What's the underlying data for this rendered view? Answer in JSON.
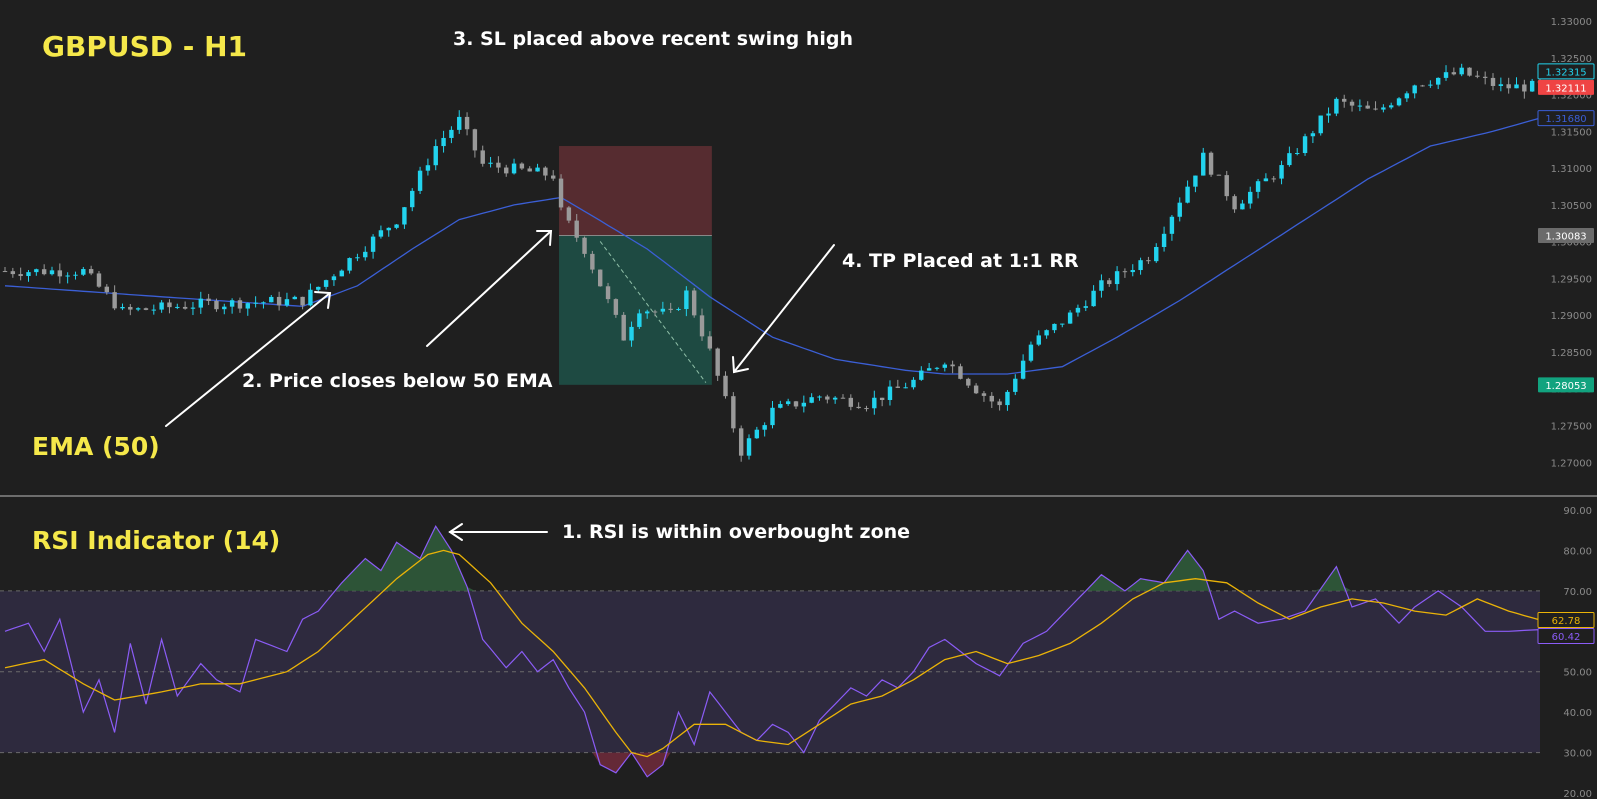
{
  "colors": {
    "background": "#1f1f1f",
    "up": "#22d3ee",
    "down": "#9a9a9a",
    "ema": "#3b5fd6",
    "rsi": "#8b5cf6",
    "rsi_ma": "#eab308",
    "title": "#f5e84a",
    "stop_zone": "#5a2d31",
    "target_zone": "#1f4d45",
    "rsi_band": "#2e2a3e",
    "divider": "#bbbbbb"
  },
  "price_panel": {
    "title": "GBPUSD - H1",
    "ema_label": "EMA (50)",
    "y_ticks": [
      "1.33000",
      "1.32500",
      "1.32000",
      "1.31500",
      "1.31000",
      "1.30500",
      "1.30000",
      "1.29500",
      "1.29000",
      "1.28500",
      "1.28000",
      "1.27500",
      "1.27000"
    ],
    "tags": [
      {
        "text": "1.32315",
        "style": "outline",
        "color": "#22d3ee",
        "value": 1.32315
      },
      {
        "text": "1.32111",
        "style": "fill",
        "color": "#ef4444",
        "value": 1.32111
      },
      {
        "text": "1.31680",
        "style": "outline",
        "color": "#3b5fd6",
        "value": 1.3168
      },
      {
        "text": "1.30083",
        "style": "fill",
        "color": "#6b6b6b",
        "value": 1.30083
      },
      {
        "text": "1.28053",
        "style": "fill",
        "color": "#12a37f",
        "value": 1.28053
      }
    ],
    "annotations": {
      "step2": "2. Price closes below 50 EMA",
      "step3": "3. SL placed above recent swing high",
      "step4": "4. TP Placed at 1:1 RR"
    }
  },
  "rsi_panel": {
    "title": "RSI Indicator (14)",
    "y_ticks": [
      "90.00",
      "80.00",
      "70.00",
      "60.00",
      "50.00",
      "40.00",
      "30.00",
      "20.00"
    ],
    "tags": [
      {
        "text": "62.78",
        "style": "outline",
        "color": "#eab308",
        "value": 62.78
      },
      {
        "text": "60.42",
        "style": "outline",
        "color": "#8b5cf6",
        "value": 60.42
      }
    ],
    "annotations": {
      "step1": "1. RSI is within overbought zone"
    }
  },
  "chart_data": [
    {
      "type": "candlestick",
      "title": "GBPUSD - H1",
      "ylim": [
        1.2665,
        1.3315
      ],
      "x_range": [
        0,
        196
      ],
      "ema_label": "EMA (50)",
      "price_anchors": [
        [
          0,
          1.296
        ],
        [
          10,
          1.296
        ],
        [
          15,
          1.2905
        ],
        [
          25,
          1.2915
        ],
        [
          38,
          1.292
        ],
        [
          45,
          1.2985
        ],
        [
          50,
          1.303
        ],
        [
          55,
          1.313
        ],
        [
          58,
          1.3165
        ],
        [
          61,
          1.3105
        ],
        [
          70,
          1.309
        ],
        [
          71,
          1.304
        ],
        [
          74,
          1.299
        ],
        [
          79,
          1.287
        ],
        [
          81,
          1.291
        ],
        [
          85,
          1.29
        ],
        [
          87,
          1.293
        ],
        [
          90,
          1.285
        ],
        [
          94,
          1.2715
        ],
        [
          98,
          1.277
        ],
        [
          104,
          1.279
        ],
        [
          110,
          1.278
        ],
        [
          116,
          1.281
        ],
        [
          120,
          1.284
        ],
        [
          124,
          1.28
        ],
        [
          127,
          1.2775
        ],
        [
          131,
          1.286
        ],
        [
          136,
          1.29
        ],
        [
          140,
          1.294
        ],
        [
          146,
          1.298
        ],
        [
          153,
          1.3115
        ],
        [
          157,
          1.305
        ],
        [
          163,
          1.31
        ],
        [
          170,
          1.319
        ],
        [
          175,
          1.3175
        ],
        [
          180,
          1.3215
        ],
        [
          186,
          1.323
        ],
        [
          191,
          1.321
        ],
        [
          196,
          1.32111
        ]
      ],
      "ema_anchors": [
        [
          0,
          1.294
        ],
        [
          20,
          1.2925
        ],
        [
          38,
          1.2912
        ],
        [
          45,
          1.294
        ],
        [
          52,
          1.299
        ],
        [
          58,
          1.303
        ],
        [
          65,
          1.305
        ],
        [
          71,
          1.306
        ],
        [
          75,
          1.3035
        ],
        [
          82,
          1.299
        ],
        [
          90,
          1.2925
        ],
        [
          98,
          1.287
        ],
        [
          106,
          1.284
        ],
        [
          115,
          1.2825
        ],
        [
          120,
          1.282
        ],
        [
          128,
          1.282
        ],
        [
          135,
          1.283
        ],
        [
          142,
          1.287
        ],
        [
          150,
          1.292
        ],
        [
          158,
          1.2975
        ],
        [
          166,
          1.303
        ],
        [
          174,
          1.3085
        ],
        [
          182,
          1.313
        ],
        [
          190,
          1.315
        ],
        [
          196,
          1.3168
        ]
      ],
      "trade_setup": {
        "entry_candle": 71,
        "exit_candle": 90,
        "stop_loss": 1.313,
        "entry": 1.30083,
        "take_profit": 1.28053
      }
    },
    {
      "type": "line",
      "title": "RSI Indicator (14)",
      "ylim": [
        20,
        90
      ],
      "x_range": [
        0,
        196
      ],
      "levels": [
        70,
        50,
        30
      ],
      "series": [
        {
          "key": "rsi",
          "color": "#8b5cf6",
          "anchors": [
            [
              0,
              60
            ],
            [
              3,
              62
            ],
            [
              5,
              55
            ],
            [
              7,
              63
            ],
            [
              10,
              40
            ],
            [
              12,
              48
            ],
            [
              14,
              35
            ],
            [
              16,
              57
            ],
            [
              18,
              42
            ],
            [
              20,
              58
            ],
            [
              22,
              44
            ],
            [
              25,
              52
            ],
            [
              27,
              48
            ],
            [
              30,
              45
            ],
            [
              32,
              58
            ],
            [
              36,
              55
            ],
            [
              38,
              63
            ],
            [
              40,
              65
            ],
            [
              43,
              72
            ],
            [
              46,
              78
            ],
            [
              48,
              75
            ],
            [
              50,
              82
            ],
            [
              53,
              78
            ],
            [
              55,
              86
            ],
            [
              57,
              80
            ],
            [
              59,
              71
            ],
            [
              61,
              58
            ],
            [
              64,
              51
            ],
            [
              66,
              55
            ],
            [
              68,
              50
            ],
            [
              70,
              53
            ],
            [
              72,
              46
            ],
            [
              74,
              40
            ],
            [
              76,
              27
            ],
            [
              78,
              25
            ],
            [
              80,
              30
            ],
            [
              82,
              24
            ],
            [
              84,
              27
            ],
            [
              86,
              40
            ],
            [
              88,
              32
            ],
            [
              90,
              45
            ],
            [
              92,
              40
            ],
            [
              94,
              35
            ],
            [
              96,
              33
            ],
            [
              98,
              37
            ],
            [
              100,
              35
            ],
            [
              102,
              30
            ],
            [
              104,
              38
            ],
            [
              106,
              42
            ],
            [
              108,
              46
            ],
            [
              110,
              44
            ],
            [
              112,
              48
            ],
            [
              114,
              46
            ],
            [
              116,
              50
            ],
            [
              118,
              56
            ],
            [
              120,
              58
            ],
            [
              122,
              55
            ],
            [
              124,
              52
            ],
            [
              127,
              49
            ],
            [
              130,
              57
            ],
            [
              133,
              60
            ],
            [
              136,
              66
            ],
            [
              138,
              70
            ],
            [
              140,
              74
            ],
            [
              143,
              70
            ],
            [
              145,
              73
            ],
            [
              148,
              72
            ],
            [
              151,
              80
            ],
            [
              153,
              75
            ],
            [
              155,
              63
            ],
            [
              157,
              65
            ],
            [
              160,
              62
            ],
            [
              163,
              63
            ],
            [
              166,
              65
            ],
            [
              170,
              76
            ],
            [
              172,
              66
            ],
            [
              175,
              68
            ],
            [
              178,
              62
            ],
            [
              180,
              66
            ],
            [
              183,
              70
            ],
            [
              186,
              66
            ],
            [
              189,
              60
            ],
            [
              192,
              60
            ],
            [
              196,
              60.42
            ]
          ]
        },
        {
          "key": "rsi_ma",
          "color": "#eab308",
          "anchors": [
            [
              0,
              51
            ],
            [
              5,
              53
            ],
            [
              10,
              47
            ],
            [
              14,
              43
            ],
            [
              20,
              45
            ],
            [
              25,
              47
            ],
            [
              30,
              47
            ],
            [
              36,
              50
            ],
            [
              40,
              55
            ],
            [
              45,
              64
            ],
            [
              50,
              73
            ],
            [
              54,
              79
            ],
            [
              56,
              80
            ],
            [
              58,
              79
            ],
            [
              62,
              72
            ],
            [
              66,
              62
            ],
            [
              70,
              55
            ],
            [
              74,
              46
            ],
            [
              78,
              35
            ],
            [
              80,
              30
            ],
            [
              82,
              29
            ],
            [
              84,
              31
            ],
            [
              88,
              37
            ],
            [
              92,
              37
            ],
            [
              96,
              33
            ],
            [
              100,
              32
            ],
            [
              104,
              37
            ],
            [
              108,
              42
            ],
            [
              112,
              44
            ],
            [
              116,
              48
            ],
            [
              120,
              53
            ],
            [
              124,
              55
            ],
            [
              128,
              52
            ],
            [
              132,
              54
            ],
            [
              136,
              57
            ],
            [
              140,
              62
            ],
            [
              144,
              68
            ],
            [
              148,
              72
            ],
            [
              152,
              73
            ],
            [
              156,
              72
            ],
            [
              160,
              67
            ],
            [
              164,
              63
            ],
            [
              168,
              66
            ],
            [
              172,
              68
            ],
            [
              176,
              67
            ],
            [
              180,
              65
            ],
            [
              184,
              64
            ],
            [
              188,
              68
            ],
            [
              192,
              65
            ],
            [
              196,
              62.78
            ]
          ]
        }
      ]
    }
  ]
}
